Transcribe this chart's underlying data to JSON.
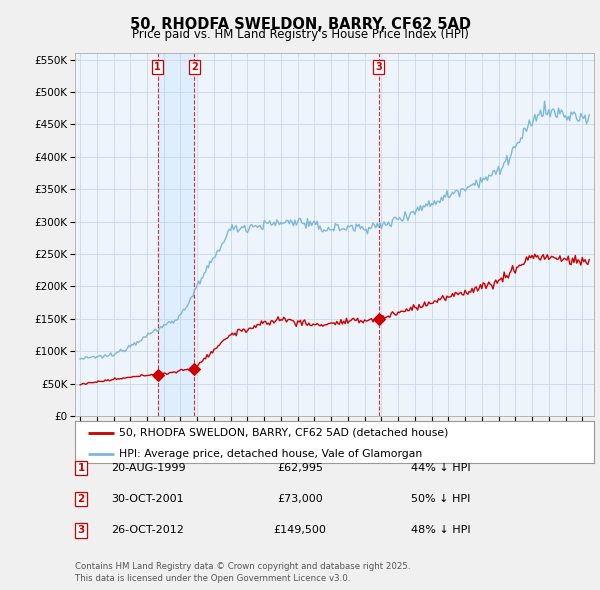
{
  "title": "50, RHODFA SWELDON, BARRY, CF62 5AD",
  "subtitle": "Price paid vs. HM Land Registry's House Price Index (HPI)",
  "red_label": "50, RHODFA SWELDON, BARRY, CF62 5AD (detached house)",
  "blue_label": "HPI: Average price, detached house, Vale of Glamorgan",
  "footer": "Contains HM Land Registry data © Crown copyright and database right 2025.\nThis data is licensed under the Open Government Licence v3.0.",
  "transactions": [
    {
      "num": 1,
      "date": "20-AUG-1999",
      "price": 62995,
      "pct": "44%",
      "dir": "↓"
    },
    {
      "num": 2,
      "date": "30-OCT-2001",
      "price": 73000,
      "pct": "50%",
      "dir": "↓"
    },
    {
      "num": 3,
      "date": "26-OCT-2012",
      "price": 149500,
      "pct": "48%",
      "dir": "↓"
    }
  ],
  "trans_years": [
    1999.635,
    2001.831,
    2012.831
  ],
  "ylim": [
    0,
    560000
  ],
  "yticks": [
    0,
    50000,
    100000,
    150000,
    200000,
    250000,
    300000,
    350000,
    400000,
    450000,
    500000,
    550000
  ],
  "xlim_start": 1994.7,
  "xlim_end": 2025.7,
  "red_color": "#cc0000",
  "blue_color": "#7db9d8",
  "shade_color": "#ddeeff",
  "bg_color": "#f0f0f0",
  "plot_bg": "#eef4fb",
  "grid_color": "#c8d8e8",
  "legend_border": "#999999"
}
